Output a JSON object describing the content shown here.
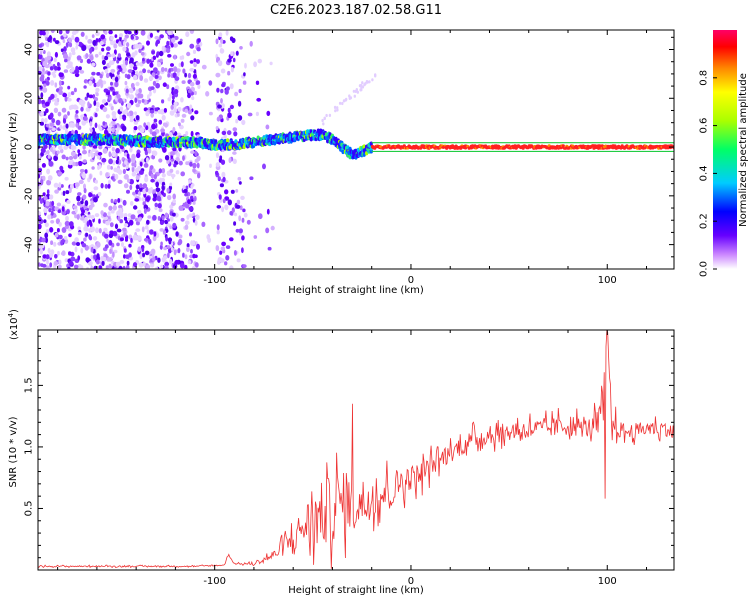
{
  "page_title": "C2E6.2023.187.02.58.G11",
  "chart_data": [
    {
      "type": "heatmap",
      "title": "C2E6.2023.187.02.58.G11",
      "xlabel": "Height of straight line (km)",
      "ylabel": "Frequency (Hz)",
      "xlim": [
        -190,
        134
      ],
      "ylim": [
        -50,
        48
      ],
      "x_ticks": [
        -100,
        0,
        100
      ],
      "x_tick_labels": [
        "-100",
        "0",
        "100"
      ],
      "y_ticks": [
        40,
        20,
        0,
        -20,
        -40
      ],
      "y_tick_labels": [
        "40",
        "20",
        "0",
        "-20",
        "-40"
      ],
      "grid": false,
      "colorbar": {
        "label": "Normalized spectral amplitude",
        "range": [
          0,
          1
        ],
        "ticks": [
          0.0,
          0.2,
          0.4,
          0.6,
          0.8
        ],
        "tick_labels": [
          "0.0",
          "0.2",
          "0.4",
          "0.6",
          "0.8"
        ],
        "colors": [
          "#ffffff",
          "#cc88ff",
          "#6600ff",
          "#0000ff",
          "#00ccff",
          "#00ff66",
          "#aaff00",
          "#ffff00",
          "#ff8800",
          "#ff0000",
          "#ff0066"
        ]
      },
      "ridge": {
        "x": [
          -190,
          -170,
          -150,
          -130,
          -110,
          -100,
          -90,
          -80,
          -70,
          -60,
          -50,
          -45,
          -40,
          -35,
          -30,
          -25,
          -20,
          -10,
          0,
          50,
          95,
          100,
          134
        ],
        "freq": [
          3,
          3,
          3,
          2,
          2,
          1,
          1,
          2,
          3,
          4,
          5,
          5,
          3,
          0,
          -3,
          -2,
          0,
          0,
          0,
          0,
          0,
          0,
          0
        ]
      },
      "scatter_edge_x": -84
    },
    {
      "type": "line",
      "xlabel": "Height of straight line (km)",
      "ylabel": "SNR (10 * v/v)",
      "y_exponent_label": "(x10",
      "y_exponent_power": "4",
      "xlim": [
        -190,
        134
      ],
      "ylim": [
        0,
        1.95
      ],
      "x_ticks": [
        -100,
        0,
        100
      ],
      "x_tick_labels": [
        "-100",
        "0",
        "100"
      ],
      "y_ticks": [
        1.5,
        1.0,
        0.5
      ],
      "y_tick_labels": [
        "1.5",
        "1.0",
        "0.5"
      ],
      "grid": false,
      "color": "#ee3333",
      "series": [
        {
          "x": [
            -190,
            -150,
            -110,
            -95,
            -93,
            -90,
            -80,
            -70,
            -60,
            -55,
            -50,
            -45,
            -40,
            -35,
            -30,
            -25,
            -20,
            -15,
            -10,
            -5,
            0,
            5,
            10,
            20,
            30,
            40,
            50,
            60,
            70,
            80,
            90,
            95,
            98,
            100,
            102,
            105,
            110,
            120,
            130,
            134
          ],
          "y": [
            0.03,
            0.03,
            0.03,
            0.04,
            0.13,
            0.05,
            0.05,
            0.12,
            0.25,
            0.35,
            0.4,
            0.45,
            0.5,
            0.55,
            0.55,
            0.55,
            0.6,
            0.62,
            0.65,
            0.72,
            0.75,
            0.78,
            0.85,
            0.95,
            1.05,
            1.1,
            1.12,
            1.15,
            1.15,
            1.18,
            1.15,
            1.2,
            1.35,
            1.9,
            1.2,
            1.15,
            1.12,
            1.15,
            1.15,
            1.1
          ],
          "spread": [
            0.01,
            0.01,
            0.01,
            0.01,
            0.02,
            0.01,
            0.02,
            0.08,
            0.2,
            0.35,
            0.45,
            0.55,
            0.55,
            0.5,
            0.45,
            0.4,
            0.35,
            0.3,
            0.3,
            0.25,
            0.2,
            0.2,
            0.18,
            0.15,
            0.15,
            0.15,
            0.15,
            0.15,
            0.15,
            0.18,
            0.15,
            0.2,
            0.3,
            0.2,
            0.25,
            0.15,
            0.12,
            0.12,
            0.12,
            0.12
          ]
        }
      ],
      "notable_peaks": [
        {
          "x": -30,
          "y": 1.35
        },
        {
          "x": 100,
          "y": 1.95
        },
        {
          "x": 99,
          "y": 0.58
        }
      ]
    }
  ]
}
